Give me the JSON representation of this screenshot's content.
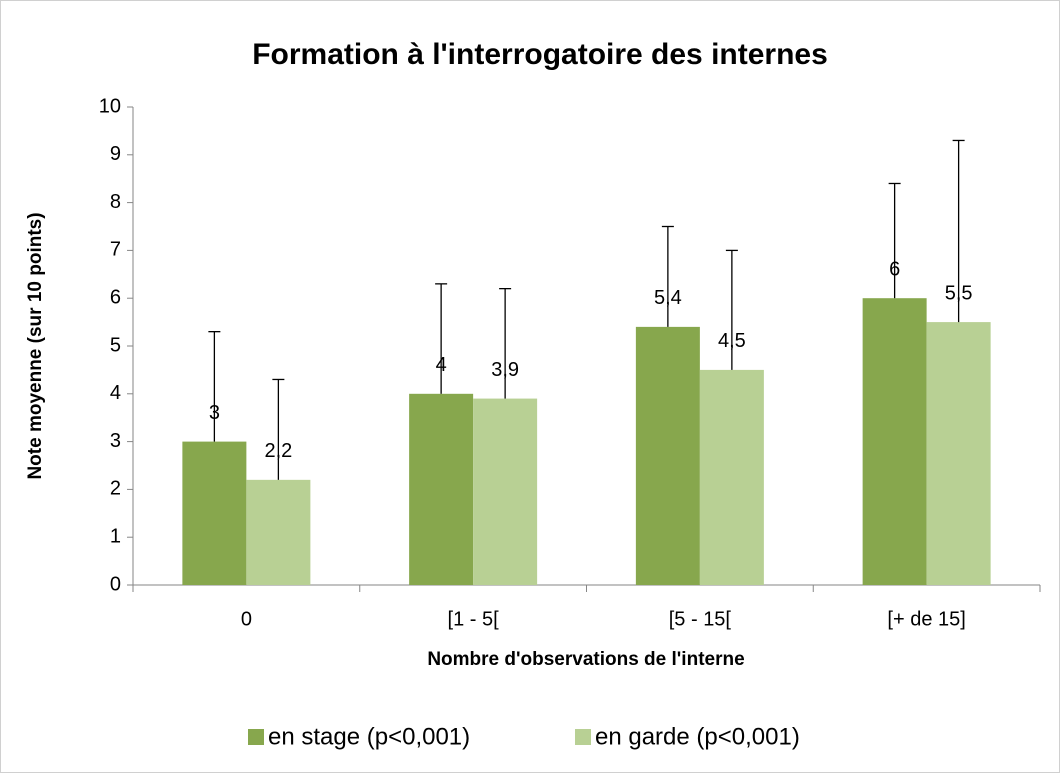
{
  "chart_data": {
    "type": "bar",
    "title": "Formation à l'interrogatoire des internes",
    "x_label": "Nombre d'observations de l'interne",
    "y_label": "Note moyenne (sur 10 points)",
    "categories": [
      "0",
      "[1 - 5[",
      "[5 - 15[",
      "[+ de 15]"
    ],
    "series": [
      {
        "name": "en stage (p<0,001)",
        "color": "#87a74d",
        "values": [
          3,
          4,
          5.4,
          6
        ],
        "value_labels": [
          "3",
          "4",
          "5,4",
          "6"
        ],
        "errors": [
          2.3,
          2.3,
          2.1,
          2.4
        ]
      },
      {
        "name": "en garde (p<0,001)",
        "color": "#b8d094",
        "values": [
          2.2,
          3.9,
          4.5,
          5.5
        ],
        "value_labels": [
          "2,2",
          "3,9",
          "4,5",
          "5,5"
        ],
        "errors": [
          2.1,
          2.3,
          2.5,
          3.8
        ]
      }
    ],
    "ylim": [
      0,
      10
    ],
    "yticks": [
      0,
      1,
      2,
      3,
      4,
      5,
      6,
      7,
      8,
      9,
      10
    ],
    "grid": false,
    "legend": "bottom"
  }
}
